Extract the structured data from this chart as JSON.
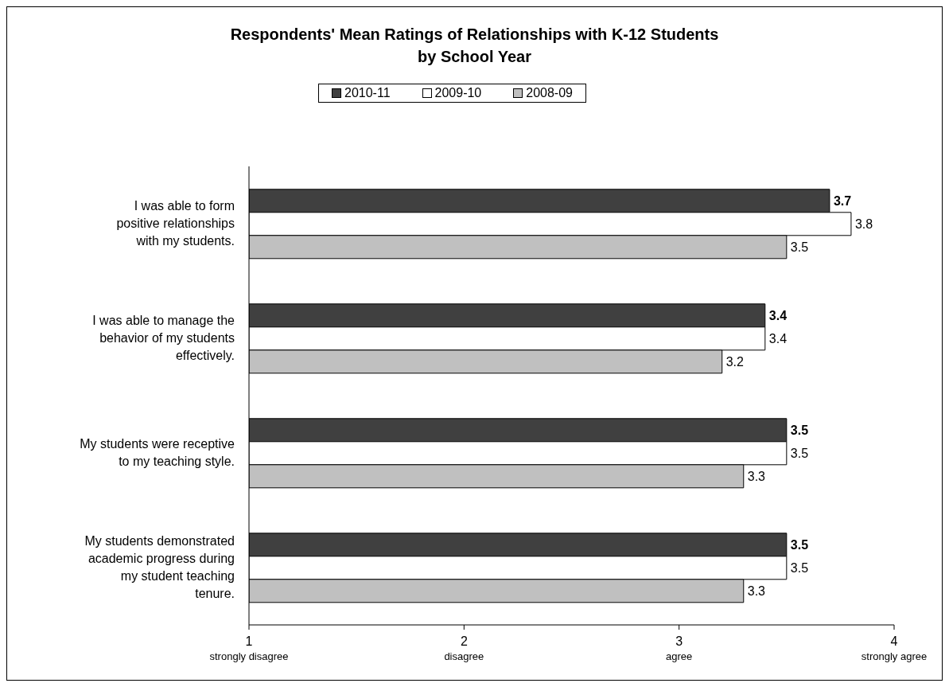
{
  "chart_data": {
    "type": "bar",
    "orientation": "horizontal",
    "title": "Respondents' Mean Ratings of Relationships with K-12 Students\nby School Year",
    "categories": [
      "I was able to form positive relationships with my students.",
      "I was able to manage the behavior of my students effectively.",
      "My students were receptive to my teaching style.",
      "My students demonstrated academic progress during my student teaching tenure."
    ],
    "series": [
      {
        "name": "2010-11",
        "color": "#404040",
        "values": [
          3.7,
          3.4,
          3.5,
          3.5
        ]
      },
      {
        "name": "2009-10",
        "color": "#ffffff",
        "values": [
          3.8,
          3.4,
          3.5,
          3.5
        ]
      },
      {
        "name": "2008-09",
        "color": "#c0c0c0",
        "values": [
          3.5,
          3.2,
          3.3,
          3.3
        ]
      }
    ],
    "xlim": [
      1,
      4
    ],
    "xticks": [
      {
        "value": 1,
        "label": "1\nstrongly disagree"
      },
      {
        "value": 2,
        "label": "2\ndisagree"
      },
      {
        "value": 3,
        "label": "3\nagree"
      },
      {
        "value": 4,
        "label": "4\nstrongly agree"
      }
    ],
    "data_labels": true,
    "legend": "top",
    "grid": false
  }
}
